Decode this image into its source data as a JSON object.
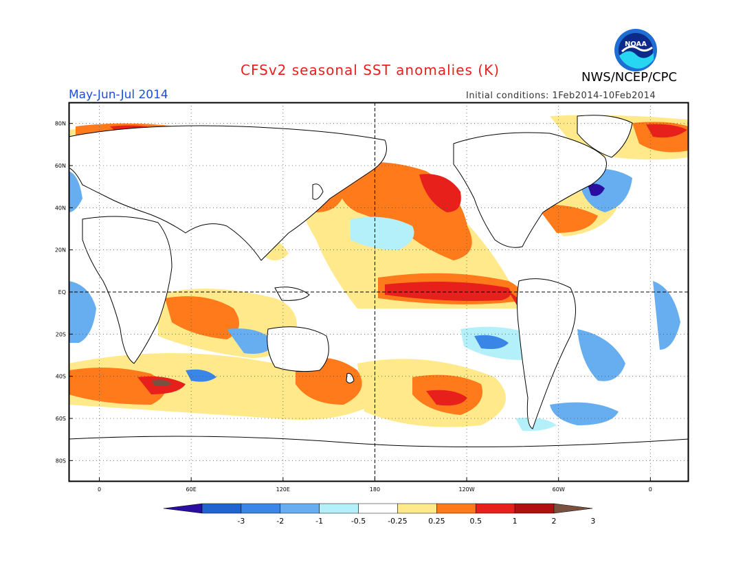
{
  "title": "CFSv2 seasonal SST anomalies (K)",
  "agency": "NWS/NCEP/CPC",
  "period": "May-Jun-Jul 2014",
  "initial_conditions": "Initial conditions: 1Feb2014-10Feb2014",
  "logo_text": "NOAA",
  "map": {
    "lat_labels": [
      "80N",
      "60N",
      "40N",
      "20N",
      "EQ",
      "20S",
      "40S",
      "60S",
      "80S"
    ],
    "lat_values": [
      80,
      60,
      40,
      20,
      0,
      -20,
      -40,
      -60,
      -80
    ],
    "lon_labels": [
      "0",
      "60E",
      "120E",
      "180",
      "120W",
      "60W",
      "0"
    ],
    "lon_values": [
      0,
      60,
      120,
      180,
      240,
      300,
      360
    ],
    "lon_range": [
      -20,
      385
    ],
    "lat_range": [
      -90,
      90
    ]
  },
  "colorbar": {
    "colors": [
      "#2a0ea0",
      "#1f64cf",
      "#3a86e6",
      "#66aef0",
      "#b4f0fa",
      "#ffffff",
      "#ffe98a",
      "#ff7a1a",
      "#e8201c",
      "#b01010",
      "#7a5040"
    ],
    "labels": [
      "-3",
      "-2",
      "-1",
      "-0.5",
      "-0.25",
      "0.25",
      "0.5",
      "1",
      "2",
      "3"
    ]
  }
}
